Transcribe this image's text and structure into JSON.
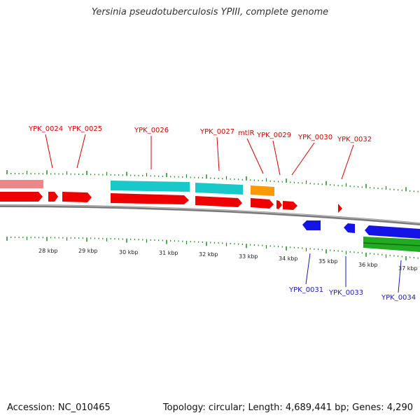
{
  "title": "Yersinia pseudotuberculosis YPIII, complete genome",
  "footer": {
    "accession": "Accession: NC_010465",
    "topology": "Topology: circular; Length: 4,689,441 bp; Genes: 4,290"
  },
  "colors": {
    "forward_cds": "#ee0000",
    "reverse_cds": "#1414e6",
    "cyan_feature": "#19c8c8",
    "orange_feature": "#ff9900",
    "pink_feature": "#e88888",
    "green_feature": "#22aa22",
    "backbone": "#888888",
    "ticks": "#1e8c1e",
    "label_top": "#d40000",
    "label_bottom": "#1a1ab4"
  },
  "kbp_labels": [
    "28 kbp",
    "29 kbp",
    "30 kbp",
    "31 kbp",
    "32 kbp",
    "33 kbp",
    "34 kbp",
    "35 kbp",
    "36 kbp",
    "37 kbp"
  ],
  "top_genes": [
    "YPK_0024",
    "YPK_0025",
    "YPK_0026",
    "YPK_0027",
    "mtlR",
    "YPK_0029",
    "YPK_0030",
    "YPK_0032"
  ],
  "bottom_genes": [
    "YPK_0031",
    "YPK_0033",
    "YPK_0034"
  ]
}
